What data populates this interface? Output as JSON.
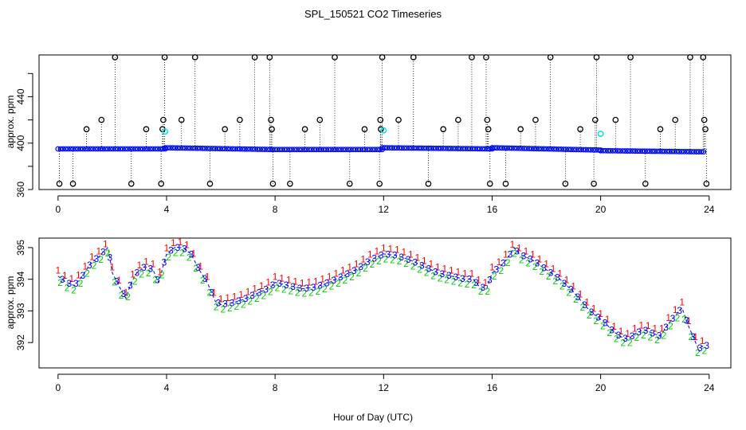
{
  "figure": {
    "title": "SPL_150521  CO2 Timeseries",
    "xlabel": "Hour of Day (UTC)"
  },
  "chart_data": [
    {
      "type": "scatter",
      "name": "raw",
      "ylabel": "approx. ppm",
      "xlim": [
        -0.7,
        24.8
      ],
      "ylim": [
        360,
        476
      ],
      "xticks": [
        "0",
        "4",
        "8",
        "12",
        "16",
        "20",
        "24"
      ],
      "xtick_values": [
        0,
        4,
        8,
        12,
        16,
        20,
        24
      ],
      "yticks": [
        "360",
        "400",
        "440"
      ],
      "ytick_values": [
        360,
        400,
        440
      ],
      "hidden_ytick_values": [
        380,
        420,
        460
      ],
      "grid": false,
      "colors": {
        "circle": "#000000",
        "dot": "#0000ff",
        "fill": "#00a000",
        "flag": "#00e5ee"
      },
      "baseline_segments": [
        {
          "x0": 0.0,
          "x1": 3.95,
          "y0": 395.0,
          "y1": 395.0
        },
        {
          "x0": 3.95,
          "x1": 7.9,
          "y0": 396.0,
          "y1": 394.5
        },
        {
          "x0": 7.9,
          "x1": 11.95,
          "y0": 394.5,
          "y1": 394.5
        },
        {
          "x0": 11.95,
          "x1": 16.0,
          "y0": 396.0,
          "y1": 395.0
        },
        {
          "x0": 16.0,
          "x1": 20.0,
          "y0": 396.0,
          "y1": 394.0
        },
        {
          "x0": 20.0,
          "x1": 23.8,
          "y0": 393.5,
          "y1": 392.5
        }
      ],
      "spikes": [
        {
          "x": 0.05,
          "y": 365
        },
        {
          "x": 0.55,
          "y": 365
        },
        {
          "x": 1.05,
          "y": 412
        },
        {
          "x": 1.6,
          "y": 420
        },
        {
          "x": 2.1,
          "y": 474
        },
        {
          "x": 2.7,
          "y": 365
        },
        {
          "x": 3.25,
          "y": 412
        },
        {
          "x": 3.8,
          "y": 365
        },
        {
          "x": 3.85,
          "y": 412
        },
        {
          "x": 3.88,
          "y": 420
        },
        {
          "x": 3.93,
          "y": 474
        },
        {
          "x": 4.55,
          "y": 420
        },
        {
          "x": 5.05,
          "y": 474
        },
        {
          "x": 5.6,
          "y": 365
        },
        {
          "x": 6.15,
          "y": 412
        },
        {
          "x": 6.7,
          "y": 420
        },
        {
          "x": 7.25,
          "y": 474
        },
        {
          "x": 7.8,
          "y": 474
        },
        {
          "x": 7.85,
          "y": 420
        },
        {
          "x": 7.88,
          "y": 412
        },
        {
          "x": 7.92,
          "y": 365
        },
        {
          "x": 8.55,
          "y": 365
        },
        {
          "x": 9.1,
          "y": 412
        },
        {
          "x": 9.65,
          "y": 420
        },
        {
          "x": 10.2,
          "y": 474
        },
        {
          "x": 10.75,
          "y": 365
        },
        {
          "x": 11.3,
          "y": 412
        },
        {
          "x": 11.85,
          "y": 365
        },
        {
          "x": 11.88,
          "y": 420
        },
        {
          "x": 11.9,
          "y": 412
        },
        {
          "x": 11.95,
          "y": 474
        },
        {
          "x": 12.55,
          "y": 420
        },
        {
          "x": 13.1,
          "y": 474
        },
        {
          "x": 13.65,
          "y": 365
        },
        {
          "x": 14.2,
          "y": 412
        },
        {
          "x": 14.75,
          "y": 420
        },
        {
          "x": 15.25,
          "y": 474
        },
        {
          "x": 15.78,
          "y": 474
        },
        {
          "x": 15.82,
          "y": 420
        },
        {
          "x": 15.86,
          "y": 412
        },
        {
          "x": 15.92,
          "y": 365
        },
        {
          "x": 16.5,
          "y": 365
        },
        {
          "x": 17.05,
          "y": 412
        },
        {
          "x": 17.6,
          "y": 420
        },
        {
          "x": 18.15,
          "y": 474
        },
        {
          "x": 18.7,
          "y": 365
        },
        {
          "x": 19.25,
          "y": 412
        },
        {
          "x": 19.75,
          "y": 365
        },
        {
          "x": 19.8,
          "y": 420
        },
        {
          "x": 19.85,
          "y": 474
        },
        {
          "x": 20.55,
          "y": 420
        },
        {
          "x": 21.1,
          "y": 474
        },
        {
          "x": 21.65,
          "y": 365
        },
        {
          "x": 22.2,
          "y": 412
        },
        {
          "x": 22.75,
          "y": 420
        },
        {
          "x": 23.3,
          "y": 474
        },
        {
          "x": 23.78,
          "y": 474
        },
        {
          "x": 23.82,
          "y": 420
        },
        {
          "x": 23.86,
          "y": 412
        },
        {
          "x": 23.9,
          "y": 365
        }
      ],
      "flagged": [
        {
          "x": 3.95,
          "y": 410
        },
        {
          "x": 12.0,
          "y": 411
        },
        {
          "x": 20.0,
          "y": 408
        }
      ]
    },
    {
      "type": "scatter",
      "name": "smoothed",
      "ylabel": "approx. ppm",
      "xlim": [
        -0.7,
        24.8
      ],
      "ylim": [
        391.2,
        395.3
      ],
      "xticks": [
        "0",
        "4",
        "8",
        "12",
        "16",
        "20",
        "24"
      ],
      "xtick_values": [
        0,
        4,
        8,
        12,
        16,
        20,
        24
      ],
      "yticks": [
        "392",
        "393",
        "394",
        "395"
      ],
      "ytick_values": [
        392,
        393,
        394,
        395
      ],
      "grid": false,
      "series": [
        {
          "name": "1",
          "label": "1",
          "color": "#ff0000",
          "offset": 0.18
        },
        {
          "name": "2",
          "label": "2",
          "color": "#00cc00",
          "offset": -0.16
        },
        {
          "name": "3",
          "label": "3",
          "color": "#0000ff",
          "offset": 0.0
        }
      ],
      "line_color": "#0000ff",
      "x": [
        0.0,
        0.3,
        0.6,
        0.9,
        1.2,
        1.5,
        1.7,
        1.85,
        2.0,
        2.3,
        2.5,
        2.7,
        2.9,
        3.2,
        3.5,
        3.7,
        3.9,
        4.0,
        4.3,
        4.6,
        4.9,
        5.2,
        5.5,
        5.8,
        6.0,
        6.4,
        6.8,
        7.2,
        7.6,
        7.9,
        8.0,
        8.5,
        9.0,
        9.5,
        10.0,
        10.5,
        11.0,
        11.5,
        12.0,
        12.5,
        13.0,
        13.5,
        14.0,
        14.5,
        15.0,
        15.3,
        15.5,
        15.8,
        16.0,
        16.3,
        16.6,
        16.8,
        17.0,
        17.5,
        18.0,
        18.5,
        19.0,
        19.3,
        19.6,
        19.9,
        20.2,
        20.4,
        20.7,
        21.0,
        21.3,
        21.6,
        21.9,
        22.2,
        22.5,
        22.8,
        23.0,
        23.2,
        23.4,
        23.6,
        23.8
      ],
      "y": [
        394.1,
        393.9,
        393.8,
        394.1,
        394.5,
        394.7,
        394.9,
        395.0,
        394.2,
        393.7,
        393.4,
        393.9,
        394.2,
        394.4,
        394.3,
        393.9,
        394.5,
        394.8,
        395.0,
        395.0,
        394.8,
        394.3,
        393.9,
        393.3,
        393.2,
        393.25,
        393.35,
        393.5,
        393.65,
        393.8,
        393.9,
        393.8,
        393.7,
        393.75,
        393.9,
        394.1,
        394.3,
        394.6,
        394.8,
        394.75,
        394.6,
        394.4,
        394.2,
        394.1,
        394.0,
        394.0,
        393.8,
        393.7,
        394.2,
        394.4,
        394.7,
        395.0,
        394.8,
        394.6,
        394.3,
        394.0,
        393.6,
        393.3,
        393.0,
        392.8,
        392.6,
        392.4,
        392.2,
        392.1,
        392.3,
        392.4,
        392.3,
        392.2,
        392.6,
        392.9,
        393.1,
        392.6,
        392.2,
        391.8,
        391.9
      ]
    }
  ]
}
